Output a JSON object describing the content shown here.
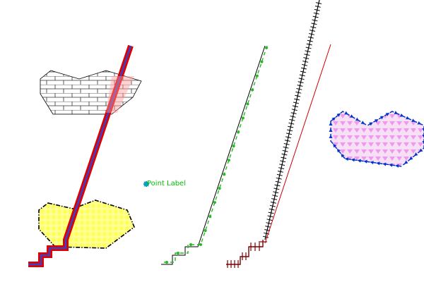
{
  "map": {
    "point_label": {
      "text": "Point Label",
      "color": "#00c000",
      "marker_color": "#00a0c0"
    },
    "features": [
      {
        "name": "polygon-brick",
        "kind": "polygon",
        "fill": "brick",
        "outline": "#000000"
      },
      {
        "name": "polygon-yellow",
        "kind": "polygon",
        "fill": "#ffff99",
        "pattern": "circles",
        "outline": "dash-dot",
        "outline_color": "#000000"
      },
      {
        "name": "polygon-pink",
        "kind": "polygon",
        "fill": "#f7d9f5",
        "pattern": "triangles",
        "pattern_color": "#ee99ee",
        "outline": "arrows",
        "outline_color": "#0033cc"
      },
      {
        "name": "line-red-blue-thick",
        "kind": "line",
        "stroke": "#e00000",
        "inner_stroke": "#3344cc"
      },
      {
        "name": "line-green-dashed",
        "kind": "line",
        "stroke": "#000000",
        "overlay": "#22bb22"
      },
      {
        "name": "line-railway",
        "kind": "line",
        "stroke": "#000000",
        "ticks": "#000000"
      },
      {
        "name": "line-darkred-ticks",
        "kind": "line",
        "stroke": "#770000"
      },
      {
        "name": "line-red-thin",
        "kind": "line",
        "stroke": "#cc0000"
      }
    ]
  }
}
